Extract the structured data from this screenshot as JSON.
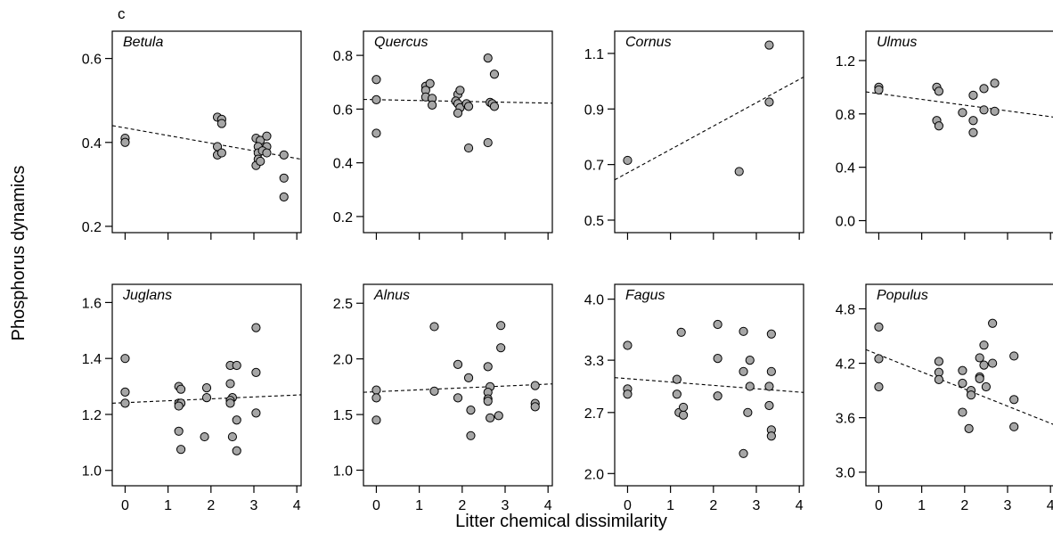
{
  "figure": {
    "panel_label": "c",
    "ylabel": "Phosphorus dynamics",
    "xlabel": "Litter chemical dissimilarity"
  },
  "chart_data": [
    {
      "type": "scatter",
      "title": "Betula",
      "xlim": [
        -0.3,
        4.1
      ],
      "ylim": [
        0.185,
        0.665
      ],
      "xticks": [
        0,
        1,
        2,
        3,
        4
      ],
      "xtick_labels": [],
      "yticks": [
        0.2,
        0.4,
        0.6
      ],
      "ytick_labels": [
        "0.2",
        "0.4",
        "0.6"
      ],
      "points": [
        [
          0,
          0.41
        ],
        [
          0,
          0.4
        ],
        [
          2.15,
          0.46
        ],
        [
          2.25,
          0.455
        ],
        [
          2.25,
          0.445
        ],
        [
          2.15,
          0.39
        ],
        [
          2.15,
          0.37
        ],
        [
          2.25,
          0.375
        ],
        [
          3.05,
          0.41
        ],
        [
          3.15,
          0.405
        ],
        [
          3.1,
          0.39
        ],
        [
          3.1,
          0.375
        ],
        [
          3.3,
          0.415
        ],
        [
          3.3,
          0.39
        ],
        [
          3.2,
          0.38
        ],
        [
          3.1,
          0.36
        ],
        [
          3.05,
          0.345
        ],
        [
          3.15,
          0.355
        ],
        [
          3.3,
          0.375
        ],
        [
          3.7,
          0.37
        ],
        [
          3.7,
          0.315
        ],
        [
          3.7,
          0.27
        ]
      ],
      "trend": [
        [
          -0.3,
          0.44
        ],
        [
          4.1,
          0.36
        ]
      ]
    },
    {
      "type": "scatter",
      "title": "Quercus",
      "xlim": [
        -0.3,
        4.1
      ],
      "ylim": [
        0.14,
        0.89
      ],
      "xticks": [
        0,
        1,
        2,
        3,
        4
      ],
      "xtick_labels": [],
      "yticks": [
        0.2,
        0.4,
        0.6,
        0.8
      ],
      "ytick_labels": [
        "0.2",
        "0.4",
        "0.6",
        "0.8"
      ],
      "points": [
        [
          0,
          0.71
        ],
        [
          0,
          0.635
        ],
        [
          0,
          0.51
        ],
        [
          1.15,
          0.685
        ],
        [
          1.25,
          0.695
        ],
        [
          1.15,
          0.67
        ],
        [
          1.15,
          0.645
        ],
        [
          1.3,
          0.64
        ],
        [
          1.3,
          0.615
        ],
        [
          1.9,
          0.655
        ],
        [
          1.95,
          0.67
        ],
        [
          1.85,
          0.63
        ],
        [
          1.9,
          0.62
        ],
        [
          1.95,
          0.605
        ],
        [
          1.9,
          0.585
        ],
        [
          2.1,
          0.62
        ],
        [
          2.15,
          0.61
        ],
        [
          2.15,
          0.455
        ],
        [
          2.6,
          0.79
        ],
        [
          2.75,
          0.73
        ],
        [
          2.65,
          0.625
        ],
        [
          2.7,
          0.62
        ],
        [
          2.75,
          0.61
        ],
        [
          2.6,
          0.475
        ]
      ],
      "trend": [
        [
          -0.3,
          0.636
        ],
        [
          4.1,
          0.622
        ]
      ]
    },
    {
      "type": "scatter",
      "title": "Cornus",
      "xlim": [
        -0.3,
        4.1
      ],
      "ylim": [
        0.455,
        1.18
      ],
      "xticks": [
        0,
        1,
        2,
        3,
        4
      ],
      "xtick_labels": [],
      "yticks": [
        0.5,
        0.7,
        0.9,
        1.1
      ],
      "ytick_labels": [
        "0.5",
        "0.7",
        "0.9",
        "1.1"
      ],
      "points": [
        [
          0,
          0.715
        ],
        [
          2.6,
          0.675
        ],
        [
          3.3,
          1.13
        ],
        [
          3.3,
          0.925
        ]
      ],
      "trend": [
        [
          -0.3,
          0.645
        ],
        [
          4.1,
          1.015
        ]
      ]
    },
    {
      "type": "scatter",
      "title": "Ulmus",
      "xlim": [
        -0.3,
        4.1
      ],
      "ylim": [
        -0.09,
        1.42
      ],
      "xticks": [
        0,
        1,
        2,
        3,
        4
      ],
      "xtick_labels": [],
      "yticks": [
        0.0,
        0.4,
        0.8,
        1.2
      ],
      "ytick_labels": [
        "0.0",
        "0.4",
        "0.8",
        "1.2"
      ],
      "points": [
        [
          0,
          1.0
        ],
        [
          0,
          0.98
        ],
        [
          1.35,
          1.0
        ],
        [
          1.4,
          0.97
        ],
        [
          1.35,
          0.75
        ],
        [
          1.4,
          0.71
        ],
        [
          1.95,
          0.81
        ],
        [
          2.2,
          0.94
        ],
        [
          2.45,
          0.99
        ],
        [
          2.2,
          0.75
        ],
        [
          2.2,
          0.66
        ],
        [
          2.45,
          0.83
        ],
        [
          2.7,
          1.03
        ],
        [
          2.7,
          0.82
        ]
      ],
      "trend": [
        [
          -0.3,
          0.965
        ],
        [
          4.1,
          0.775
        ]
      ]
    },
    {
      "type": "scatter",
      "title": "Juglans",
      "xlim": [
        -0.3,
        4.1
      ],
      "ylim": [
        0.945,
        1.665
      ],
      "xticks": [
        0,
        1,
        2,
        3,
        4
      ],
      "xtick_labels": [
        "0",
        "1",
        "2",
        "3",
        "4"
      ],
      "yticks": [
        1.0,
        1.2,
        1.4,
        1.6
      ],
      "ytick_labels": [
        "1.0",
        "1.2",
        "1.4",
        "1.6"
      ],
      "points": [
        [
          0,
          1.4
        ],
        [
          0,
          1.28
        ],
        [
          0,
          1.24
        ],
        [
          1.25,
          1.3
        ],
        [
          1.3,
          1.29
        ],
        [
          1.25,
          1.24
        ],
        [
          1.3,
          1.24
        ],
        [
          1.25,
          1.23
        ],
        [
          1.25,
          1.14
        ],
        [
          1.3,
          1.075
        ],
        [
          1.9,
          1.295
        ],
        [
          1.9,
          1.26
        ],
        [
          1.85,
          1.12
        ],
        [
          2.45,
          1.375
        ],
        [
          2.6,
          1.375
        ],
        [
          2.45,
          1.31
        ],
        [
          2.5,
          1.26
        ],
        [
          2.45,
          1.25
        ],
        [
          2.45,
          1.24
        ],
        [
          2.6,
          1.18
        ],
        [
          2.5,
          1.12
        ],
        [
          2.6,
          1.07
        ],
        [
          3.05,
          1.51
        ],
        [
          3.05,
          1.35
        ],
        [
          3.05,
          1.205
        ]
      ],
      "trend": [
        [
          -0.3,
          1.24
        ],
        [
          4.1,
          1.27
        ]
      ]
    },
    {
      "type": "scatter",
      "title": "Alnus",
      "xlim": [
        -0.3,
        4.1
      ],
      "ylim": [
        0.86,
        2.67
      ],
      "xticks": [
        0,
        1,
        2,
        3,
        4
      ],
      "xtick_labels": [
        "0",
        "1",
        "2",
        "3",
        "4"
      ],
      "yticks": [
        1.0,
        1.5,
        2.0,
        2.5
      ],
      "ytick_labels": [
        "1.0",
        "1.5",
        "2.0",
        "2.5"
      ],
      "points": [
        [
          0,
          1.72
        ],
        [
          0,
          1.65
        ],
        [
          0,
          1.45
        ],
        [
          1.35,
          2.29
        ],
        [
          1.35,
          1.71
        ],
        [
          1.9,
          1.95
        ],
        [
          1.9,
          1.65
        ],
        [
          2.15,
          1.83
        ],
        [
          2.2,
          1.54
        ],
        [
          2.2,
          1.31
        ],
        [
          2.6,
          1.93
        ],
        [
          2.65,
          1.75
        ],
        [
          2.6,
          1.7
        ],
        [
          2.6,
          1.64
        ],
        [
          2.6,
          1.62
        ],
        [
          2.65,
          1.47
        ],
        [
          2.9,
          2.3
        ],
        [
          2.9,
          2.1
        ],
        [
          2.85,
          1.49
        ],
        [
          3.7,
          1.76
        ],
        [
          3.7,
          1.6
        ],
        [
          3.7,
          1.57
        ]
      ],
      "trend": [
        [
          -0.3,
          1.7
        ],
        [
          4.1,
          1.775
        ]
      ]
    },
    {
      "type": "scatter",
      "title": "Fagus",
      "xlim": [
        -0.3,
        4.1
      ],
      "ylim": [
        1.86,
        4.17
      ],
      "xticks": [
        0,
        1,
        2,
        3,
        4
      ],
      "xtick_labels": [
        "0",
        "1",
        "2",
        "3",
        "4"
      ],
      "yticks": [
        2.0,
        2.7,
        3.3,
        4.0
      ],
      "ytick_labels": [
        "2.0",
        "2.7",
        "3.3",
        "4.0"
      ],
      "points": [
        [
          0,
          3.47
        ],
        [
          0,
          2.97
        ],
        [
          0,
          2.91
        ],
        [
          1.15,
          3.08
        ],
        [
          1.15,
          2.91
        ],
        [
          1.25,
          3.62
        ],
        [
          1.2,
          2.7
        ],
        [
          1.3,
          2.67
        ],
        [
          1.3,
          2.76
        ],
        [
          2.1,
          3.71
        ],
        [
          2.1,
          3.32
        ],
        [
          2.1,
          2.89
        ],
        [
          2.7,
          3.63
        ],
        [
          2.7,
          3.17
        ],
        [
          2.85,
          3.3
        ],
        [
          2.85,
          3.0
        ],
        [
          2.8,
          2.7
        ],
        [
          2.7,
          2.23
        ],
        [
          3.35,
          3.6
        ],
        [
          3.35,
          3.17
        ],
        [
          3.3,
          3.0
        ],
        [
          3.3,
          2.78
        ],
        [
          3.35,
          2.5
        ],
        [
          3.35,
          2.43
        ]
      ],
      "trend": [
        [
          -0.3,
          3.1
        ],
        [
          4.1,
          2.93
        ]
      ]
    },
    {
      "type": "scatter",
      "title": "Populus",
      "xlim": [
        -0.3,
        4.1
      ],
      "ylim": [
        2.85,
        5.07
      ],
      "xticks": [
        0,
        1,
        2,
        3,
        4
      ],
      "xtick_labels": [
        "0",
        "1",
        "2",
        "3",
        "4"
      ],
      "yticks": [
        3.0,
        3.6,
        4.2,
        4.8
      ],
      "ytick_labels": [
        "3.0",
        "3.6",
        "4.2",
        "4.8"
      ],
      "points": [
        [
          0,
          4.6
        ],
        [
          0,
          4.25
        ],
        [
          0,
          3.94
        ],
        [
          1.4,
          4.22
        ],
        [
          1.4,
          4.1
        ],
        [
          1.4,
          4.02
        ],
        [
          1.95,
          4.12
        ],
        [
          1.95,
          3.98
        ],
        [
          1.95,
          3.66
        ],
        [
          2.15,
          3.9
        ],
        [
          2.15,
          3.85
        ],
        [
          2.1,
          3.48
        ],
        [
          2.35,
          4.26
        ],
        [
          2.35,
          4.05
        ],
        [
          2.35,
          4.03
        ],
        [
          2.45,
          4.4
        ],
        [
          2.45,
          4.18
        ],
        [
          2.5,
          3.94
        ],
        [
          2.65,
          4.64
        ],
        [
          2.65,
          4.2
        ],
        [
          3.15,
          4.28
        ],
        [
          3.15,
          3.8
        ],
        [
          3.15,
          3.5
        ]
      ],
      "trend": [
        [
          -0.3,
          4.35
        ],
        [
          4.1,
          3.52
        ]
      ]
    }
  ]
}
